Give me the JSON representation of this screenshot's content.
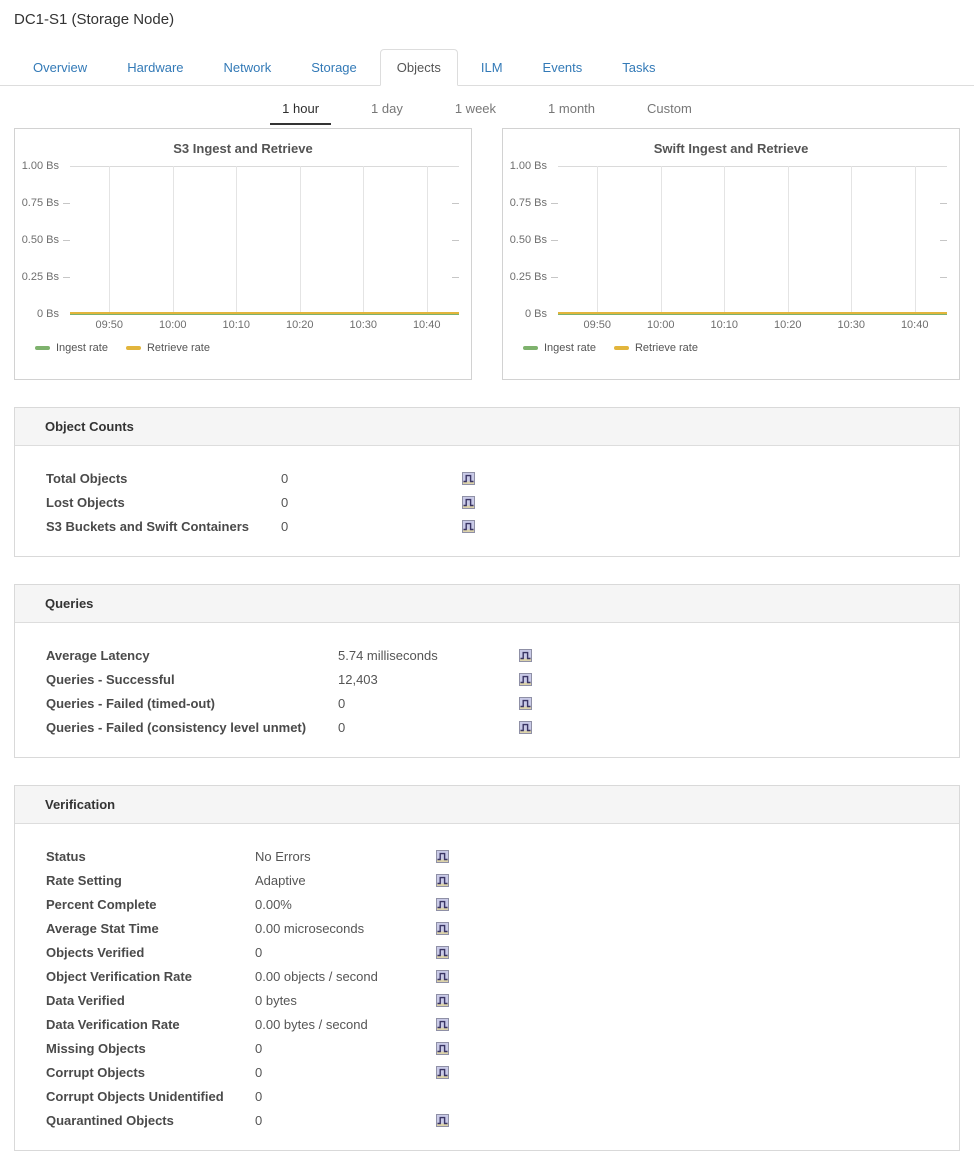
{
  "page": {
    "title": "DC1-S1 (Storage Node)"
  },
  "tabs": [
    {
      "label": "Overview",
      "active": false
    },
    {
      "label": "Hardware",
      "active": false
    },
    {
      "label": "Network",
      "active": false
    },
    {
      "label": "Storage",
      "active": false
    },
    {
      "label": "Objects",
      "active": true
    },
    {
      "label": "ILM",
      "active": false
    },
    {
      "label": "Events",
      "active": false
    },
    {
      "label": "Tasks",
      "active": false
    }
  ],
  "time_range": [
    {
      "label": "1 hour",
      "active": true
    },
    {
      "label": "1 day",
      "active": false
    },
    {
      "label": "1 week",
      "active": false
    },
    {
      "label": "1 month",
      "active": false
    },
    {
      "label": "Custom",
      "active": false
    }
  ],
  "chart_data": [
    {
      "type": "line",
      "title": "S3 Ingest and Retrieve",
      "x_ticks": [
        "09:50",
        "10:00",
        "10:10",
        "10:20",
        "10:30",
        "10:40"
      ],
      "y_ticks": [
        "1.00 Bs",
        "0.75 Bs",
        "0.50 Bs",
        "0.25 Bs",
        "0 Bs"
      ],
      "ylim": [
        0,
        1.0
      ],
      "unit": "Bs",
      "grid": true,
      "legend_position": "bottom",
      "series": [
        {
          "name": "Ingest rate",
          "color": "#7eb26d",
          "values": [
            0,
            0,
            0,
            0,
            0,
            0
          ]
        },
        {
          "name": "Retrieve rate",
          "color": "#e2b53c",
          "values": [
            0,
            0,
            0,
            0,
            0,
            0
          ]
        }
      ]
    },
    {
      "type": "line",
      "title": "Swift Ingest and Retrieve",
      "x_ticks": [
        "09:50",
        "10:00",
        "10:10",
        "10:20",
        "10:30",
        "10:40"
      ],
      "y_ticks": [
        "1.00 Bs",
        "0.75 Bs",
        "0.50 Bs",
        "0.25 Bs",
        "0 Bs"
      ],
      "ylim": [
        0,
        1.0
      ],
      "unit": "Bs",
      "grid": true,
      "legend_position": "bottom",
      "series": [
        {
          "name": "Ingest rate",
          "color": "#7eb26d",
          "values": [
            0,
            0,
            0,
            0,
            0,
            0
          ]
        },
        {
          "name": "Retrieve rate",
          "color": "#e2b53c",
          "values": [
            0,
            0,
            0,
            0,
            0,
            0
          ]
        }
      ]
    }
  ],
  "sections": [
    {
      "name": "object-counts",
      "title": "Object Counts",
      "rows": [
        {
          "label": "Total Objects",
          "value": "0",
          "chart_icon": true
        },
        {
          "label": "Lost Objects",
          "value": "0",
          "chart_icon": true
        },
        {
          "label": "S3 Buckets and Swift Containers",
          "value": "0",
          "chart_icon": true
        }
      ]
    },
    {
      "name": "queries",
      "title": "Queries",
      "rows": [
        {
          "label": "Average Latency",
          "value": "5.74 milliseconds",
          "chart_icon": true
        },
        {
          "label": "Queries - Successful",
          "value": "12,403",
          "chart_icon": true
        },
        {
          "label": "Queries - Failed (timed-out)",
          "value": "0",
          "chart_icon": true
        },
        {
          "label": "Queries - Failed (consistency level unmet)",
          "value": "0",
          "chart_icon": true
        }
      ]
    },
    {
      "name": "verification",
      "title": "Verification",
      "rows": [
        {
          "label": "Status",
          "value": "No Errors",
          "chart_icon": true
        },
        {
          "label": "Rate Setting",
          "value": "Adaptive",
          "chart_icon": true
        },
        {
          "label": "Percent Complete",
          "value": "0.00%",
          "chart_icon": true
        },
        {
          "label": "Average Stat Time",
          "value": "0.00 microseconds",
          "chart_icon": true
        },
        {
          "label": "Objects Verified",
          "value": "0",
          "chart_icon": true
        },
        {
          "label": "Object Verification Rate",
          "value": "0.00 objects / second",
          "chart_icon": true
        },
        {
          "label": "Data Verified",
          "value": "0 bytes",
          "chart_icon": true
        },
        {
          "label": "Data Verification Rate",
          "value": "0.00 bytes / second",
          "chart_icon": true
        },
        {
          "label": "Missing Objects",
          "value": "0",
          "chart_icon": true
        },
        {
          "label": "Corrupt Objects",
          "value": "0",
          "chart_icon": true
        },
        {
          "label": "Corrupt Objects Unidentified",
          "value": "0",
          "chart_icon": false
        },
        {
          "label": "Quarantined Objects",
          "value": "0",
          "chart_icon": true
        }
      ]
    }
  ],
  "icons": {
    "chart_button": "line-chart-history-icon"
  },
  "colors": {
    "tab_link": "#337ab7",
    "active_time_underline": "#333333",
    "panel_header_bg": "#f5f5f5",
    "panel_border": "#d9d9d9",
    "series_green": "#7eb26d",
    "series_yellow": "#e2b53c"
  }
}
